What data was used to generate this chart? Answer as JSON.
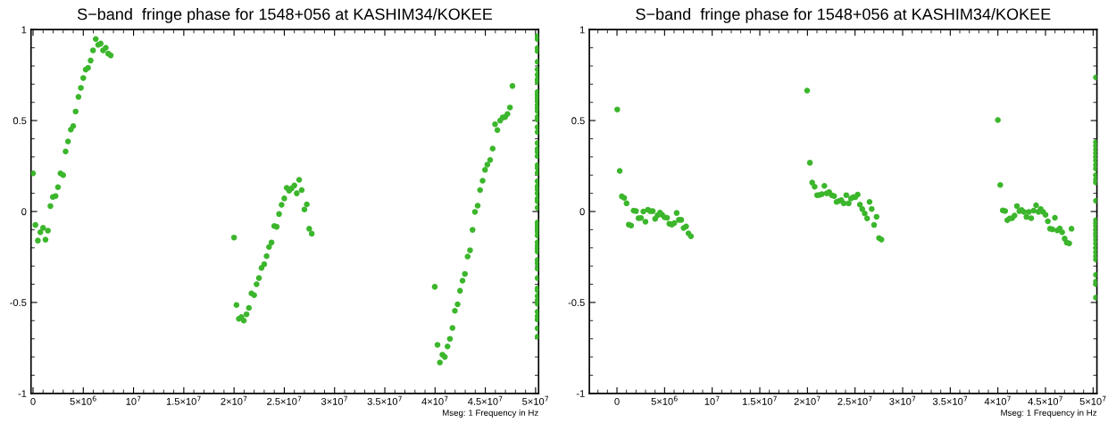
{
  "chart_data": [
    {
      "type": "scatter",
      "title": "S−band  fringe phase for 1548+056 at KASHIM34/KOKEE",
      "xlabel": "Mseg: 1 Frequency in Hz",
      "marker": "circle",
      "grid": false,
      "xlim": [
        -200000,
        50300000
      ],
      "xticks": [
        {
          "value": 0,
          "label": "0"
        },
        {
          "value": 5000000,
          "label": "5×10$^{6}$"
        },
        {
          "value": 10000000,
          "label": "10$^{7}$"
        },
        {
          "value": 15000000,
          "label": "1.5×10$^{7}$"
        },
        {
          "value": 20000000,
          "label": "2×10$^{7}$"
        },
        {
          "value": 25000000,
          "label": "2.5×10$^{7}$"
        },
        {
          "value": 30000000,
          "label": "3×10$^{7}$"
        },
        {
          "value": 35000000,
          "label": "3.5×10$^{7}$"
        },
        {
          "value": 40000000,
          "label": "4×10$^{7}$"
        },
        {
          "value": 45000000,
          "label": "4.5×10$^{7}$"
        },
        {
          "value": 50000000,
          "label": "5×10$^{7}$"
        }
      ],
      "ylim": [
        -1,
        1
      ],
      "yticks": [
        -1,
        -0.5,
        0,
        0.5,
        1
      ],
      "series": [
        {
          "color": "#3cb62c",
          "x": [
            0,
            240000,
            480000,
            730000,
            1000000,
            1240000,
            1480000,
            1730000,
            1970000,
            2240000,
            2480000,
            2730000,
            3000000,
            3240000,
            3480000,
            3760000,
            4000000,
            4240000,
            4520000,
            4760000,
            5000000,
            5240000,
            5480000,
            5730000,
            5970000,
            6240000,
            6480000,
            6730000,
            6970000,
            7240000,
            7480000,
            7730000,
            20000000,
            20240000,
            20480000,
            20730000,
            20970000,
            21240000,
            21480000,
            21730000,
            22000000,
            22240000,
            22480000,
            22730000,
            23000000,
            23240000,
            23480000,
            23730000,
            24000000,
            24240000,
            24480000,
            24730000,
            25000000,
            25240000,
            25480000,
            25730000,
            26000000,
            26240000,
            26480000,
            26730000,
            27000000,
            27240000,
            27480000,
            27730000,
            39970000,
            40240000,
            40480000,
            40730000,
            40970000,
            41240000,
            41480000,
            41730000,
            41970000,
            42240000,
            42480000,
            42730000,
            42970000,
            43240000,
            43480000,
            43730000,
            43970000,
            44240000,
            44480000,
            44730000,
            44970000,
            45200000,
            45480000,
            45730000,
            45970000,
            46200000,
            46480000,
            46730000,
            46970000,
            47200000,
            47450000,
            47700000,
            50200000,
            50200000,
            50200000,
            50200000,
            50200000,
            50200000,
            50200000,
            50200000,
            50200000,
            50200000,
            50200000,
            50200000,
            50200000,
            50200000,
            50200000,
            50200000,
            50200000,
            50200000,
            50200000,
            50200000,
            50200000,
            50200000,
            50200000,
            50200000,
            50200000,
            50200000,
            50200000,
            50200000,
            50200000,
            50200000,
            50200000,
            50200000,
            50200000,
            50200000,
            50200000,
            50200000,
            50200000,
            50200000,
            50200000,
            50200000,
            50200000,
            50200000,
            50200000,
            50200000,
            50200000,
            50200000,
            50200000,
            50200000,
            50200000,
            50200000,
            50200000,
            50200000,
            50200000,
            50200000,
            50200000,
            50200000,
            50200000
          ],
          "values": [
            0.21,
            -0.074,
            -0.16,
            -0.114,
            -0.09,
            -0.155,
            -0.105,
            0.03,
            0.08,
            0.085,
            0.134,
            0.21,
            0.2,
            0.33,
            0.385,
            0.45,
            0.47,
            0.55,
            0.63,
            0.68,
            0.734,
            0.78,
            0.79,
            0.83,
            0.886,
            0.948,
            0.916,
            0.923,
            0.886,
            0.9,
            0.868,
            0.858,
            -0.143,
            -0.514,
            -0.59,
            -0.58,
            -0.6,
            -0.565,
            -0.53,
            -0.45,
            -0.46,
            -0.4,
            -0.366,
            -0.31,
            -0.29,
            -0.245,
            -0.195,
            -0.17,
            -0.08,
            -0.084,
            -0.014,
            0.037,
            0.072,
            0.13,
            0.114,
            0.127,
            0.143,
            0.1,
            0.174,
            0.118,
            0.011,
            0.039,
            -0.095,
            -0.122,
            -0.414,
            -0.733,
            -0.83,
            -0.787,
            -0.8,
            -0.742,
            -0.7,
            -0.64,
            -0.546,
            -0.51,
            -0.436,
            -0.38,
            -0.343,
            -0.248,
            -0.213,
            -0.101,
            -0.002,
            0.032,
            0.118,
            0.169,
            0.229,
            0.258,
            0.283,
            0.346,
            0.48,
            0.448,
            0.5,
            0.517,
            0.519,
            0.536,
            0.572,
            0.69,
            0.963,
            0.947,
            0.899,
            0.882,
            0.823,
            0.781,
            0.752,
            0.727,
            0.713,
            0.657,
            0.641,
            0.625,
            0.609,
            0.585,
            0.569,
            0.552,
            0.52,
            0.504,
            0.464,
            0.437,
            0.376,
            0.344,
            0.328,
            0.304,
            0.255,
            0.239,
            0.212,
            0.167,
            0.138,
            0.122,
            0.1,
            0.071,
            0.056,
            0.021,
            -0.06,
            -0.076,
            -0.092,
            -0.111,
            -0.132,
            -0.169,
            -0.188,
            -0.205,
            -0.221,
            -0.266,
            -0.285,
            -0.314,
            -0.366,
            -0.422,
            -0.433,
            -0.465,
            -0.488,
            -0.507,
            -0.551,
            -0.575,
            -0.594,
            -0.642,
            -0.688
          ]
        }
      ]
    },
    {
      "type": "scatter",
      "title": "S−band  fringe phase for 1548+056 at KASHIM34/KOKEE",
      "xlabel": "Mseg: 1 Frequency in Hz",
      "marker": "circle",
      "grid": false,
      "xlim": [
        -2900000,
        50400000
      ],
      "xticks": [
        {
          "value": 0,
          "label": "0"
        },
        {
          "value": 5000000,
          "label": "5×10$^{6}$"
        },
        {
          "value": 10000000,
          "label": "10$^{7}$"
        },
        {
          "value": 15000000,
          "label": "1.5×10$^{7}$"
        },
        {
          "value": 20000000,
          "label": "2×10$^{7}$"
        },
        {
          "value": 25000000,
          "label": "2.5×10$^{7}$"
        },
        {
          "value": 30000000,
          "label": "3×10$^{7}$"
        },
        {
          "value": 35000000,
          "label": "3.5×10$^{7}$"
        },
        {
          "value": 40000000,
          "label": "4×10$^{7}$"
        },
        {
          "value": 45000000,
          "label": "4.5×10$^{7}$"
        },
        {
          "value": 50000000,
          "label": "5×10$^{7}$"
        }
      ],
      "ylim": [
        -1,
        1
      ],
      "yticks": [
        -1,
        -0.5,
        0,
        0.5,
        1
      ],
      "series": [
        {
          "color": "#3cb62c",
          "x": [
            30000,
            290000,
            510000,
            760000,
            1010000,
            1240000,
            1490000,
            1750000,
            2000000,
            2260000,
            2510000,
            2770000,
            2990000,
            3250000,
            3500000,
            3760000,
            4010000,
            4260000,
            4520000,
            4740000,
            5000000,
            5260000,
            5500000,
            5760000,
            6020000,
            6270000,
            6500000,
            6750000,
            7000000,
            7260000,
            7510000,
            7770000,
            19970000,
            20260000,
            20500000,
            20760000,
            21020000,
            21270000,
            21530000,
            21780000,
            22030000,
            22290000,
            22550000,
            22800000,
            23060000,
            23310000,
            23560000,
            23820000,
            24080000,
            24330000,
            24580000,
            24840000,
            25030000,
            25280000,
            25510000,
            25760000,
            26020000,
            26270000,
            26520000,
            26750000,
            27000000,
            27260000,
            27520000,
            27770000,
            40000000,
            40250000,
            40510000,
            40760000,
            40990000,
            41240000,
            41500000,
            41750000,
            42000000,
            42260000,
            42480000,
            42740000,
            43000000,
            43250000,
            43500000,
            43760000,
            44010000,
            44270000,
            44490000,
            44750000,
            45000000,
            45250000,
            45480000,
            45730000,
            45990000,
            46240000,
            46500000,
            46750000,
            47010000,
            47230000,
            47490000,
            47730000,
            50300000,
            50300000,
            50300000,
            50300000,
            50300000,
            50300000,
            50300000,
            50300000,
            50300000,
            50300000,
            50300000,
            50300000,
            50300000,
            50300000,
            50300000,
            50300000,
            50300000,
            50300000,
            50300000,
            50300000,
            50300000,
            50300000,
            50300000,
            50300000,
            50300000,
            50300000,
            50300000,
            50300000,
            50300000
          ],
          "values": [
            0.561,
            0.223,
            0.083,
            0.075,
            0.045,
            -0.072,
            -0.077,
            0.005,
            0.002,
            -0.037,
            -0.035,
            0,
            -0.056,
            0.01,
            0.002,
            0.002,
            -0.04,
            -0.021,
            -0.006,
            -0.018,
            -0.032,
            -0.034,
            -0.067,
            -0.072,
            -0.064,
            -0.008,
            -0.046,
            -0.046,
            -0.091,
            -0.082,
            -0.12,
            -0.136,
            0.665,
            0.268,
            0.159,
            0.136,
            0.09,
            0.091,
            0.096,
            0.141,
            0.1,
            0.107,
            0.09,
            0.085,
            0.053,
            0.058,
            0.062,
            0.045,
            0.09,
            0.045,
            0.072,
            0.08,
            0.079,
            0.093,
            0.038,
            0.013,
            -0.011,
            -0.038,
            0.053,
            0.014,
            -0.074,
            -0.029,
            -0.146,
            -0.154,
            0.503,
            0.146,
            0.006,
            0.003,
            -0.048,
            -0.038,
            -0.037,
            -0.022,
            0.03,
            0.002,
            0.008,
            -0.002,
            -0.03,
            -0.002,
            -0.037,
            0.005,
            0.034,
            -0.002,
            0.014,
            -0.002,
            -0.018,
            -0.054,
            -0.095,
            -0.098,
            -0.034,
            -0.104,
            -0.093,
            -0.114,
            -0.149,
            -0.171,
            -0.175,
            -0.095,
            0.737,
            0.381,
            0.361,
            0.341,
            0.321,
            0.3,
            0.28,
            0.256,
            0.236,
            0.2,
            0.176,
            0.16,
            0.059,
            -0.048,
            -0.064,
            -0.08,
            -0.101,
            -0.12,
            -0.136,
            -0.156,
            -0.176,
            -0.2,
            -0.224,
            -0.245,
            -0.264,
            -0.348,
            -0.385,
            -0.473,
            -0.4
          ]
        }
      ]
    }
  ]
}
